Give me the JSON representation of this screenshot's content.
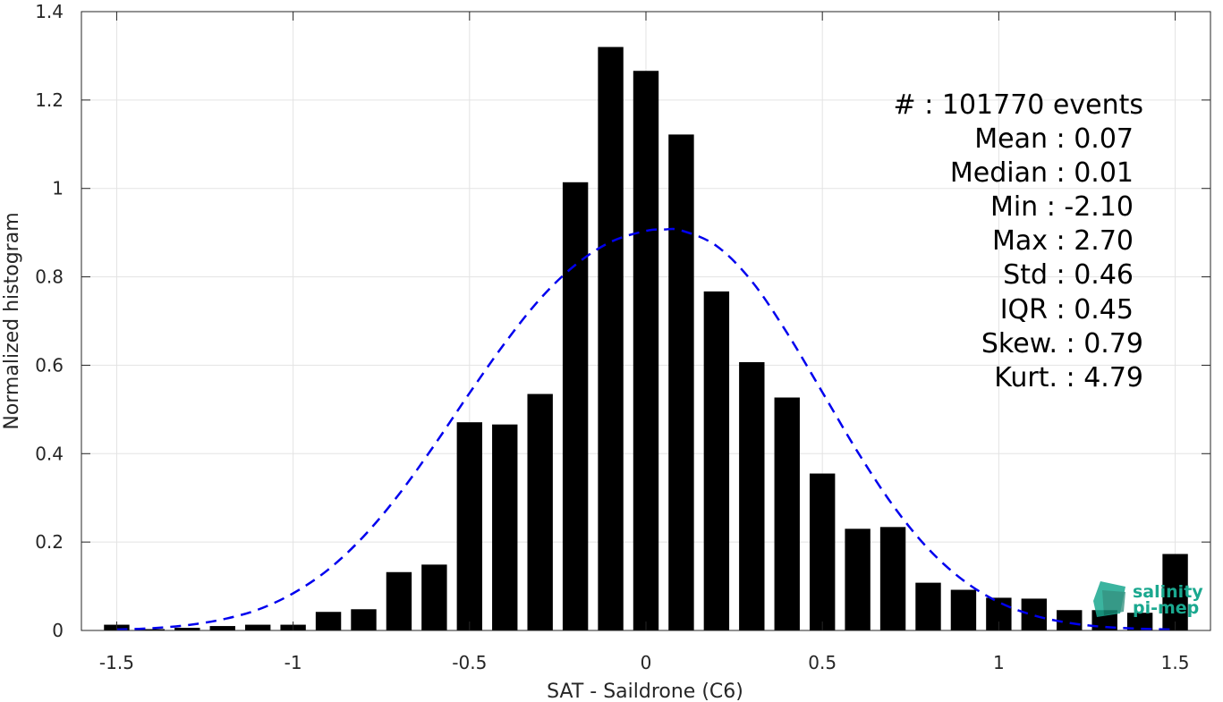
{
  "chart_data": {
    "type": "bar",
    "xlabel": "SAT - Saildrone (C6)",
    "ylabel": "Normalized histogram",
    "xlim": [
      -1.6,
      1.6
    ],
    "ylim": [
      0,
      1.4
    ],
    "xticks": [
      -1.5,
      -1,
      -0.5,
      0,
      0.5,
      1,
      1.5
    ],
    "xtick_labels": [
      "-1.5",
      "-1",
      "-0.5",
      "0",
      "0.5",
      "1",
      "1.5"
    ],
    "yticks": [
      0,
      0.2,
      0.4,
      0.6,
      0.8,
      1,
      1.2,
      1.4
    ],
    "ytick_labels": [
      "0",
      "0.2",
      "0.4",
      "0.6",
      "0.8",
      "1",
      "1.2",
      "1.4"
    ],
    "grid": true,
    "bar_color": "#000000",
    "bars": {
      "x": [
        -1.5,
        -1.4,
        -1.3,
        -1.2,
        -1.1,
        -1.0,
        -0.9,
        -0.8,
        -0.7,
        -0.6,
        -0.5,
        -0.4,
        -0.3,
        -0.2,
        -0.1,
        0.0,
        0.1,
        0.2,
        0.3,
        0.4,
        0.5,
        0.6,
        0.7,
        0.8,
        0.9,
        1.0,
        1.1,
        1.2,
        1.3,
        1.4,
        1.5
      ],
      "values": [
        0.013,
        0.003,
        0.006,
        0.01,
        0.013,
        0.013,
        0.042,
        0.048,
        0.132,
        0.149,
        0.471,
        0.466,
        0.535,
        1.014,
        1.32,
        1.266,
        1.122,
        0.767,
        0.607,
        0.527,
        0.355,
        0.23,
        0.234,
        0.108,
        0.092,
        0.074,
        0.072,
        0.046,
        0.046,
        0.04,
        0.173
      ]
    },
    "fit_curve": {
      "style": "dashed",
      "color": "#0000ee",
      "x": [
        -1.5,
        -1.4,
        -1.3,
        -1.2,
        -1.1,
        -1.0,
        -0.9,
        -0.8,
        -0.7,
        -0.6,
        -0.5,
        -0.4,
        -0.3,
        -0.2,
        -0.1,
        0.0,
        0.05,
        0.1,
        0.2,
        0.3,
        0.4,
        0.5,
        0.6,
        0.7,
        0.8,
        0.9,
        1.0,
        1.1,
        1.2,
        1.3,
        1.4,
        1.5
      ],
      "y": [
        0.002,
        0.005,
        0.012,
        0.025,
        0.047,
        0.084,
        0.138,
        0.213,
        0.308,
        0.419,
        0.537,
        0.65,
        0.75,
        0.827,
        0.879,
        0.904,
        0.907,
        0.905,
        0.87,
        0.79,
        0.673,
        0.539,
        0.404,
        0.283,
        0.185,
        0.113,
        0.064,
        0.034,
        0.017,
        0.008,
        0.004,
        0.002
      ]
    }
  },
  "stats": [
    {
      "label": "#  : 101770 events"
    },
    {
      "label": "Mean : 0.07"
    },
    {
      "label": "Median : 0.01"
    },
    {
      "label": "Min : -2.10"
    },
    {
      "label": "Max : 2.70"
    },
    {
      "label": "Std : 0.46"
    },
    {
      "label": "IQR : 0.45"
    },
    {
      "label": "Skew. : 0.79"
    },
    {
      "label": "Kurt. : 4.79"
    }
  ],
  "logo": {
    "line1": "salinity",
    "line2": "pi-mep",
    "color": "#1aa88f"
  }
}
